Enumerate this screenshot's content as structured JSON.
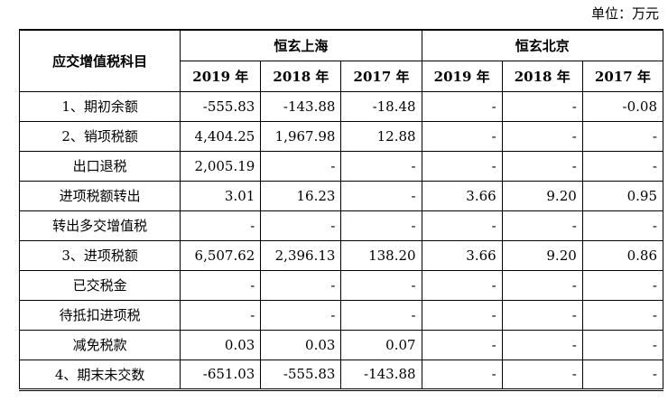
{
  "unit_label": "单位：万元",
  "header": {
    "item_col": "应交增值税科目",
    "groups": [
      "恒玄上海",
      "恒玄北京"
    ],
    "years": [
      "2019 年",
      "2018 年",
      "2017 年",
      "2019 年",
      "2018 年",
      "2017 年"
    ]
  },
  "rows": [
    {
      "label": "1、期初余额",
      "values": [
        "-555.83",
        "-143.88",
        "-18.48",
        "-",
        "-",
        "-0.08"
      ]
    },
    {
      "label": "2、销项税额",
      "values": [
        "4,404.25",
        "1,967.98",
        "12.88",
        "-",
        "-",
        "-"
      ]
    },
    {
      "label": "出口退税",
      "values": [
        "2,005.19",
        "-",
        "-",
        "-",
        "-",
        "-"
      ]
    },
    {
      "label": "进项税额转出",
      "values": [
        "3.01",
        "16.23",
        "-",
        "3.66",
        "9.20",
        "0.95"
      ]
    },
    {
      "label": "转出多交增值税",
      "values": [
        "-",
        "-",
        "-",
        "-",
        "-",
        "-"
      ]
    },
    {
      "label": "3、进项税额",
      "values": [
        "6,507.62",
        "2,396.13",
        "138.20",
        "3.66",
        "9.20",
        "0.86"
      ]
    },
    {
      "label": "已交税金",
      "values": [
        "-",
        "-",
        "-",
        "-",
        "-",
        "-"
      ]
    },
    {
      "label": "待抵扣进项税",
      "values": [
        "-",
        "-",
        "-",
        "-",
        "-",
        "-"
      ]
    },
    {
      "label": "减免税款",
      "values": [
        "0.03",
        "0.03",
        "0.07",
        "-",
        "-",
        "-"
      ]
    },
    {
      "label": "4、期末未交数",
      "values": [
        "-651.03",
        "-555.83",
        "-143.88",
        "-",
        "-",
        "-"
      ]
    }
  ]
}
